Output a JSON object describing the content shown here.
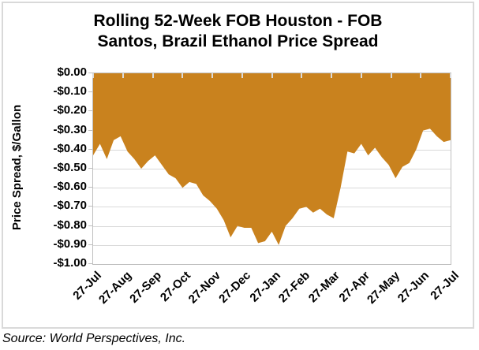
{
  "figure": {
    "title_line1": "Rolling 52-Week FOB Houston - FOB",
    "title_line2": "Santos, Brazil Ethanol Price Spread",
    "source_note": "Source: World Perspectives, Inc."
  },
  "chart_data": {
    "type": "area",
    "title": "Rolling 52-Week FOB Houston - FOB Santos, Brazil Ethanol Price Spread",
    "xlabel": "",
    "ylabel": "Price Spread, $/Gallon",
    "ylim": [
      -1.0,
      0.0
    ],
    "y_tick_labels": [
      "$0.00",
      "-$0.10",
      "-$0.20",
      "-$0.30",
      "-$0.40",
      "-$0.50",
      "-$0.60",
      "-$0.70",
      "-$0.80",
      "-$0.90",
      "-$1.00"
    ],
    "y_tick_values": [
      0.0,
      -0.1,
      -0.2,
      -0.3,
      -0.4,
      -0.5,
      -0.6,
      -0.7,
      -0.8,
      -0.9,
      -1.0
    ],
    "x_tick_labels": [
      "27-Jul",
      "27-Aug",
      "27-Sep",
      "27-Oct",
      "27-Nov",
      "27-Dec",
      "27-Jan",
      "27-Feb",
      "27-Mar",
      "27-Apr",
      "27-May",
      "27-Jun",
      "27-Jul"
    ],
    "x_frequency": "weekly",
    "values": [
      -0.43,
      -0.37,
      -0.45,
      -0.35,
      -0.33,
      -0.41,
      -0.45,
      -0.5,
      -0.46,
      -0.43,
      -0.48,
      -0.53,
      -0.55,
      -0.6,
      -0.57,
      -0.58,
      -0.64,
      -0.67,
      -0.71,
      -0.77,
      -0.86,
      -0.8,
      -0.81,
      -0.81,
      -0.89,
      -0.88,
      -0.83,
      -0.9,
      -0.8,
      -0.76,
      -0.71,
      -0.7,
      -0.73,
      -0.71,
      -0.74,
      -0.76,
      -0.6,
      -0.41,
      -0.42,
      -0.37,
      -0.43,
      -0.39,
      -0.44,
      -0.48,
      -0.55,
      -0.49,
      -0.47,
      -0.4,
      -0.3,
      -0.29,
      -0.33,
      -0.36,
      -0.35
    ],
    "fill_color": "#C9821E",
    "gridline_color": "#D9D9D9",
    "axis_color": "#BFBFBF",
    "grid": true,
    "legend": false,
    "baseline": 0.0
  }
}
